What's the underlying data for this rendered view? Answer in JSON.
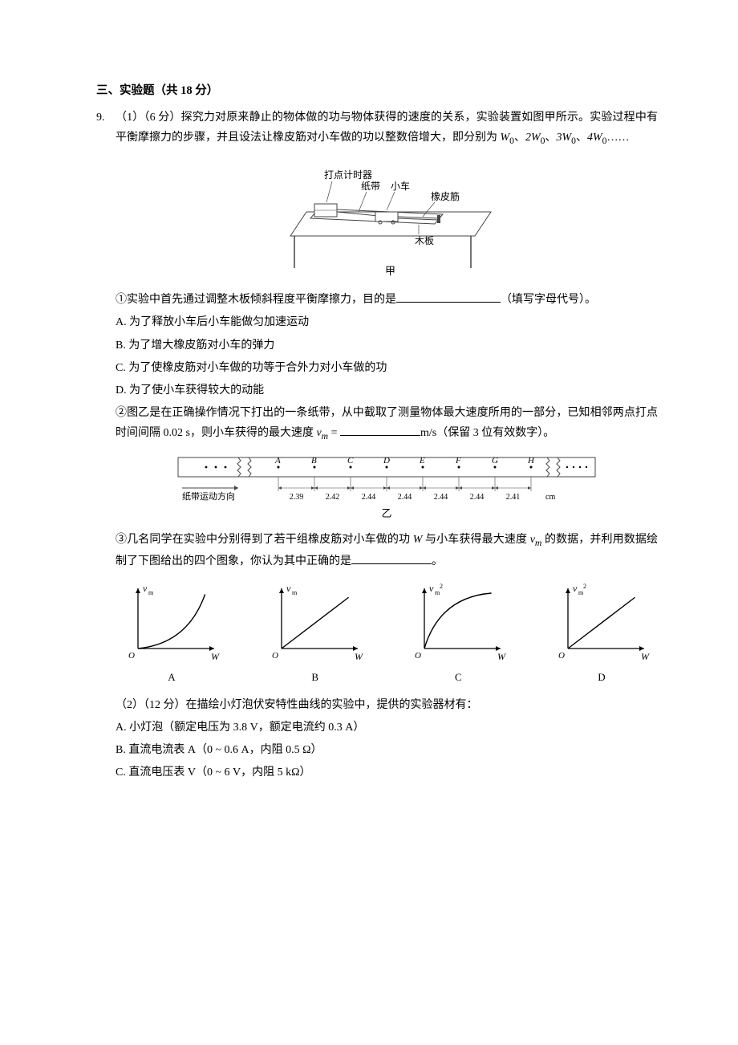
{
  "section": {
    "heading": "三、实验题（共 18 分）"
  },
  "q9": {
    "num": "9.",
    "part1_intro": "（1）（6 分）探究力对原来静止的物体做的功与物体获得的速度的关系，实验装置如图甲所示。实验过程中有平衡摩擦力的步骤，并且设法让橡皮筋对小车做的功以整数倍增大，即分别为 ",
    "w_terms": [
      "W",
      "2W",
      "3W",
      "4W"
    ],
    "ellipsis": "……",
    "setup_labels": {
      "timer": "打点计时器",
      "tape": "纸带",
      "cart": "小车",
      "rubber": "橡皮筋",
      "board": "木板",
      "fig_caption": "甲"
    },
    "sub1_prefix": "①实验中首先通过调整木板倾斜程度平衡摩擦力，目的是",
    "sub1_suffix": "（填写字母代号）。",
    "options": {
      "A": "A. 为了释放小车后小车能做匀加速运动",
      "B": "B. 为了增大橡皮筋对小车的弹力",
      "C": "C. 为了使橡皮筋对小车做的功等于合外力对小车做的功",
      "D": "D. 为了使小车获得较大的动能"
    },
    "sub2_text_a": "②图乙是在正确操作情况下打出的一条纸带，从中截取了测量物体最大速度所用的一部分，已知相邻两点打点时间间隔 0.02 s，则小车获得的最大速度 ",
    "sub2_vm": "v",
    "sub2_sub": "m",
    "sub2_eq": " = ",
    "sub2_unit": "m/s（保留 3 位有效数字）。",
    "tape": {
      "direction_label": "纸带运动方向",
      "points": [
        "A",
        "B",
        "C",
        "D",
        "E",
        "F",
        "G",
        "H"
      ],
      "distances": [
        "2.39",
        "2.42",
        "2.44",
        "2.44",
        "2.44",
        "2.44",
        "2.41"
      ],
      "unit": "cm",
      "caption": "乙"
    },
    "sub3_text_a": "③几名同学在实验中分别得到了若干组橡皮筋对小车做的功 ",
    "sub3_W": "W",
    "sub3_text_b": " 与小车获得最大速度 ",
    "sub3_vm": "v",
    "sub3_vm_sub": "m",
    "sub3_text_c": " 的数据，并利用数据绘制了下图给出的四个图象，你认为其中正确的是",
    "sub3_suffix": "。",
    "graphs": {
      "colors": {
        "axis": "#000000",
        "curve": "#000000",
        "bg": "#ffffff"
      },
      "items": [
        {
          "label": "A",
          "yaxis": "v_m",
          "xaxis": "W",
          "curve_type": "concave_up"
        },
        {
          "label": "B",
          "yaxis": "v_m",
          "xaxis": "W",
          "curve_type": "linear"
        },
        {
          "label": "C",
          "yaxis": "v_m^2",
          "xaxis": "W",
          "curve_type": "concave_down"
        },
        {
          "label": "D",
          "yaxis": "v_m^2",
          "xaxis": "W",
          "curve_type": "linear"
        }
      ],
      "width": 140,
      "height": 110
    }
  },
  "q9_part2": {
    "intro": "（2）（12 分）在描绘小灯泡伏安特性曲线的实验中，提供的实验器材有：",
    "items": {
      "A": "A. 小灯泡（额定电压为 3.8 V，额定电流约 0.3 A）",
      "B": "B. 直流电流表 A（0 ~ 0.6 A，内阻 0.5 Ω）",
      "C": "C. 直流电压表 V（0 ~ 6 V，内阻 5 kΩ）"
    }
  }
}
